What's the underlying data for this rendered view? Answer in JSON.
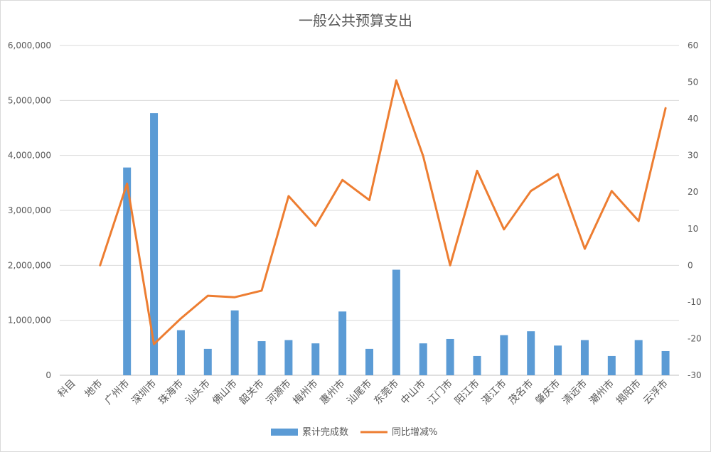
{
  "chart_data": {
    "type": "bar",
    "title": "一般公共预算支出",
    "categories": [
      "科目",
      "地市",
      "广州市",
      "深圳市",
      "珠海市",
      "汕头市",
      "佛山市",
      "韶关市",
      "河源市",
      "梅州市",
      "惠州市",
      "汕尾市",
      "东莞市",
      "中山市",
      "江门市",
      "阳江市",
      "湛江市",
      "茂名市",
      "肇庆市",
      "清远市",
      "潮州市",
      "揭阳市",
      "云浮市"
    ],
    "series": [
      {
        "name": "累计完成数",
        "type": "bar",
        "axis": "left",
        "color": "#5b9bd5",
        "values": [
          null,
          null,
          3780000,
          4770000,
          820000,
          480000,
          1180000,
          620000,
          640000,
          580000,
          1160000,
          480000,
          1920000,
          580000,
          660000,
          350000,
          730000,
          800000,
          540000,
          640000,
          350000,
          640000,
          440000
        ]
      },
      {
        "name": "同比增减%",
        "type": "line",
        "axis": "right",
        "color": "#ed7d31",
        "values": [
          null,
          0,
          22.3,
          -21.5,
          -14.5,
          -8.3,
          -8.7,
          -6.9,
          18.9,
          10.8,
          23.3,
          17.8,
          50.5,
          29.8,
          0,
          25.8,
          9.8,
          20.3,
          24.9,
          4.5,
          20.3,
          12.1,
          42.9
        ]
      }
    ],
    "y_left": {
      "min": 0,
      "max": 6000000,
      "step": 1000000,
      "ticks": [
        "0",
        "1,000,000",
        "2,000,000",
        "3,000,000",
        "4,000,000",
        "5,000,000",
        "6,000,000"
      ]
    },
    "y_right": {
      "min": -30,
      "max": 60,
      "step": 10,
      "ticks": [
        "-30",
        "-20",
        "-10",
        "0",
        "10",
        "20",
        "30",
        "40",
        "50",
        "60"
      ]
    },
    "grid": true,
    "legend": "bottom-center"
  }
}
